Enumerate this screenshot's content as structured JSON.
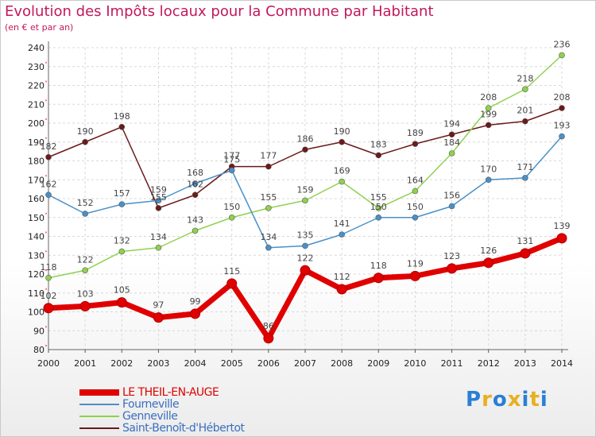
{
  "title": "Evolution des Impôts locaux pour la Commune par Habitant",
  "subtitle": "(en € et par an)",
  "logo": {
    "letters": [
      "P",
      "r",
      "o",
      "x",
      "i",
      "t",
      "i"
    ],
    "colors": [
      "#2a7fd4",
      "#e8b020",
      "#2a7fd4",
      "#e8b020",
      "#2a7fd4",
      "#e8b020",
      "#2a7fd4"
    ]
  },
  "chart_data": {
    "type": "line",
    "x": [
      2000,
      2001,
      2002,
      2003,
      2004,
      2005,
      2006,
      2007,
      2008,
      2009,
      2010,
      2011,
      2012,
      2013,
      2014
    ],
    "ylim": [
      80,
      240
    ],
    "yticks": [
      80,
      90,
      100,
      110,
      120,
      130,
      140,
      150,
      160,
      170,
      180,
      190,
      200,
      210,
      220,
      230,
      240
    ],
    "grid": true,
    "legend_position": "bottom-left",
    "series": [
      {
        "name": "LE THEIL-EN-AUGE",
        "color": "#e00000",
        "thick": true,
        "values": [
          102,
          103,
          105,
          97,
          99,
          115,
          86,
          122,
          112,
          118,
          119,
          123,
          126,
          131,
          139
        ]
      },
      {
        "name": "Fourneville",
        "color": "#4a90c8",
        "thick": false,
        "values": [
          162,
          152,
          157,
          159,
          168,
          175,
          134,
          135,
          141,
          150,
          150,
          156,
          170,
          171,
          193
        ]
      },
      {
        "name": "Genneville",
        "color": "#8fd14f",
        "thick": false,
        "values": [
          118,
          122,
          132,
          134,
          143,
          150,
          155,
          159,
          169,
          155,
          164,
          184,
          208,
          218,
          236
        ]
      },
      {
        "name": "Saint-Benoît-d'Hébertot",
        "color": "#6b1a1a",
        "thick": false,
        "values": [
          182,
          190,
          198,
          155,
          162,
          177,
          177,
          186,
          190,
          183,
          189,
          194,
          199,
          201,
          208
        ]
      }
    ]
  }
}
